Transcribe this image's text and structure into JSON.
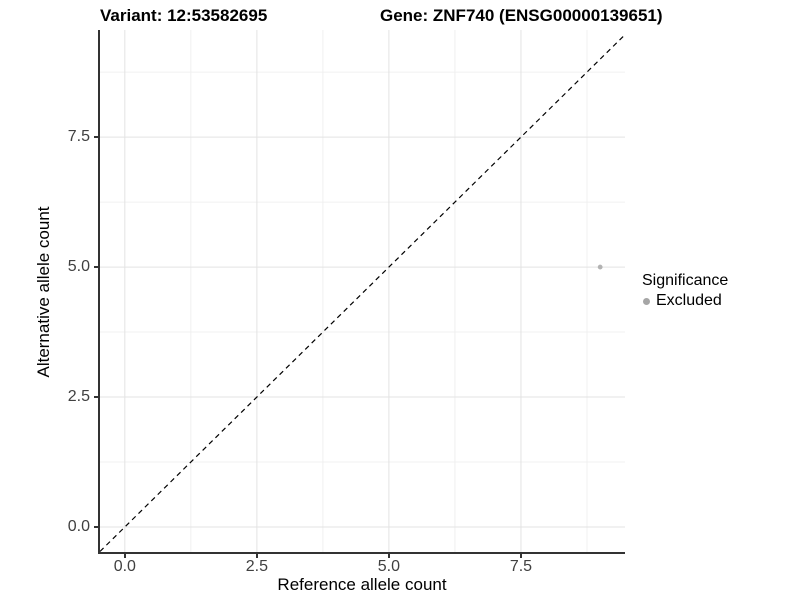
{
  "header": {
    "variant_title": "Variant: 12:53582695",
    "gene_title": "Gene: ZNF740 (ENSG00000139651)"
  },
  "chart_data": {
    "type": "scatter",
    "title": "Variant: 12:53582695    Gene: ZNF740 (ENSG00000139651)",
    "xlabel": "Reference allele count",
    "ylabel": "Alternative allele count",
    "xlim": [
      -0.47,
      9.47
    ],
    "ylim": [
      -0.5,
      9.56
    ],
    "x_ticks": [
      0.0,
      2.5,
      5.0,
      7.5
    ],
    "y_ticks": [
      0.0,
      2.5,
      5.0,
      7.5
    ],
    "x_tick_labels": [
      "0.0",
      "2.5",
      "5.0",
      "7.5"
    ],
    "y_tick_labels": [
      "0.0",
      "2.5",
      "5.0",
      "7.5"
    ],
    "x_minor_ticks": [
      1.25,
      3.75,
      6.25,
      8.75
    ],
    "y_minor_ticks": [
      1.25,
      3.75,
      6.25,
      8.75
    ],
    "grid": true,
    "points": [
      {
        "x": 9,
        "y": 5,
        "series": "Excluded"
      }
    ],
    "reference_line": {
      "kind": "abline",
      "slope": 1,
      "intercept": 0,
      "style": "dashed",
      "color": "#000000"
    },
    "legend": {
      "title": "Significance",
      "position": "right",
      "entries": [
        {
          "label": "Excluded",
          "color": "#a6a6a6"
        }
      ]
    },
    "colors": {
      "point": "#b3b3b3",
      "grid_major": "#e3e3e3",
      "grid_minor": "#f0f0f0",
      "axis": "#333333",
      "tick_text": "#404040"
    }
  }
}
